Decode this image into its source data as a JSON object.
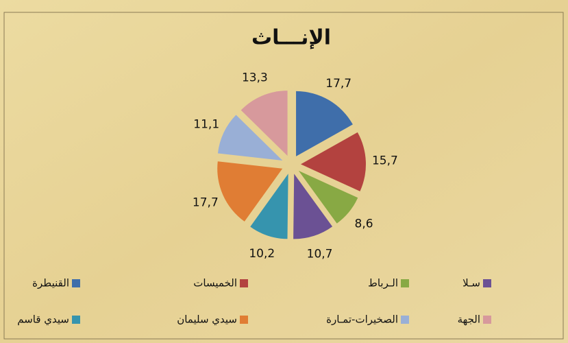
{
  "chart_data": {
    "type": "pie",
    "title": "الإنـــاث",
    "categories": [
      "القنيطرة",
      "الخميسات",
      "الـرباط",
      "سـلا",
      "سيدي قاسم",
      "سيدي سليمان",
      "الصخيرات-تمـارة",
      "الجهة"
    ],
    "values": [
      17.7,
      15.7,
      8.6,
      10.7,
      10.2,
      17.7,
      11.1,
      13.3
    ],
    "value_labels": [
      "17,7",
      "15,7",
      "8,6",
      "10,7",
      "10,2",
      "17,7",
      "11,1",
      "13,3"
    ],
    "colors": [
      "#3f6eaa",
      "#b3423f",
      "#88a944",
      "#6b5194",
      "#3694ae",
      "#e07d34",
      "#99afd6",
      "#d7999c"
    ]
  }
}
